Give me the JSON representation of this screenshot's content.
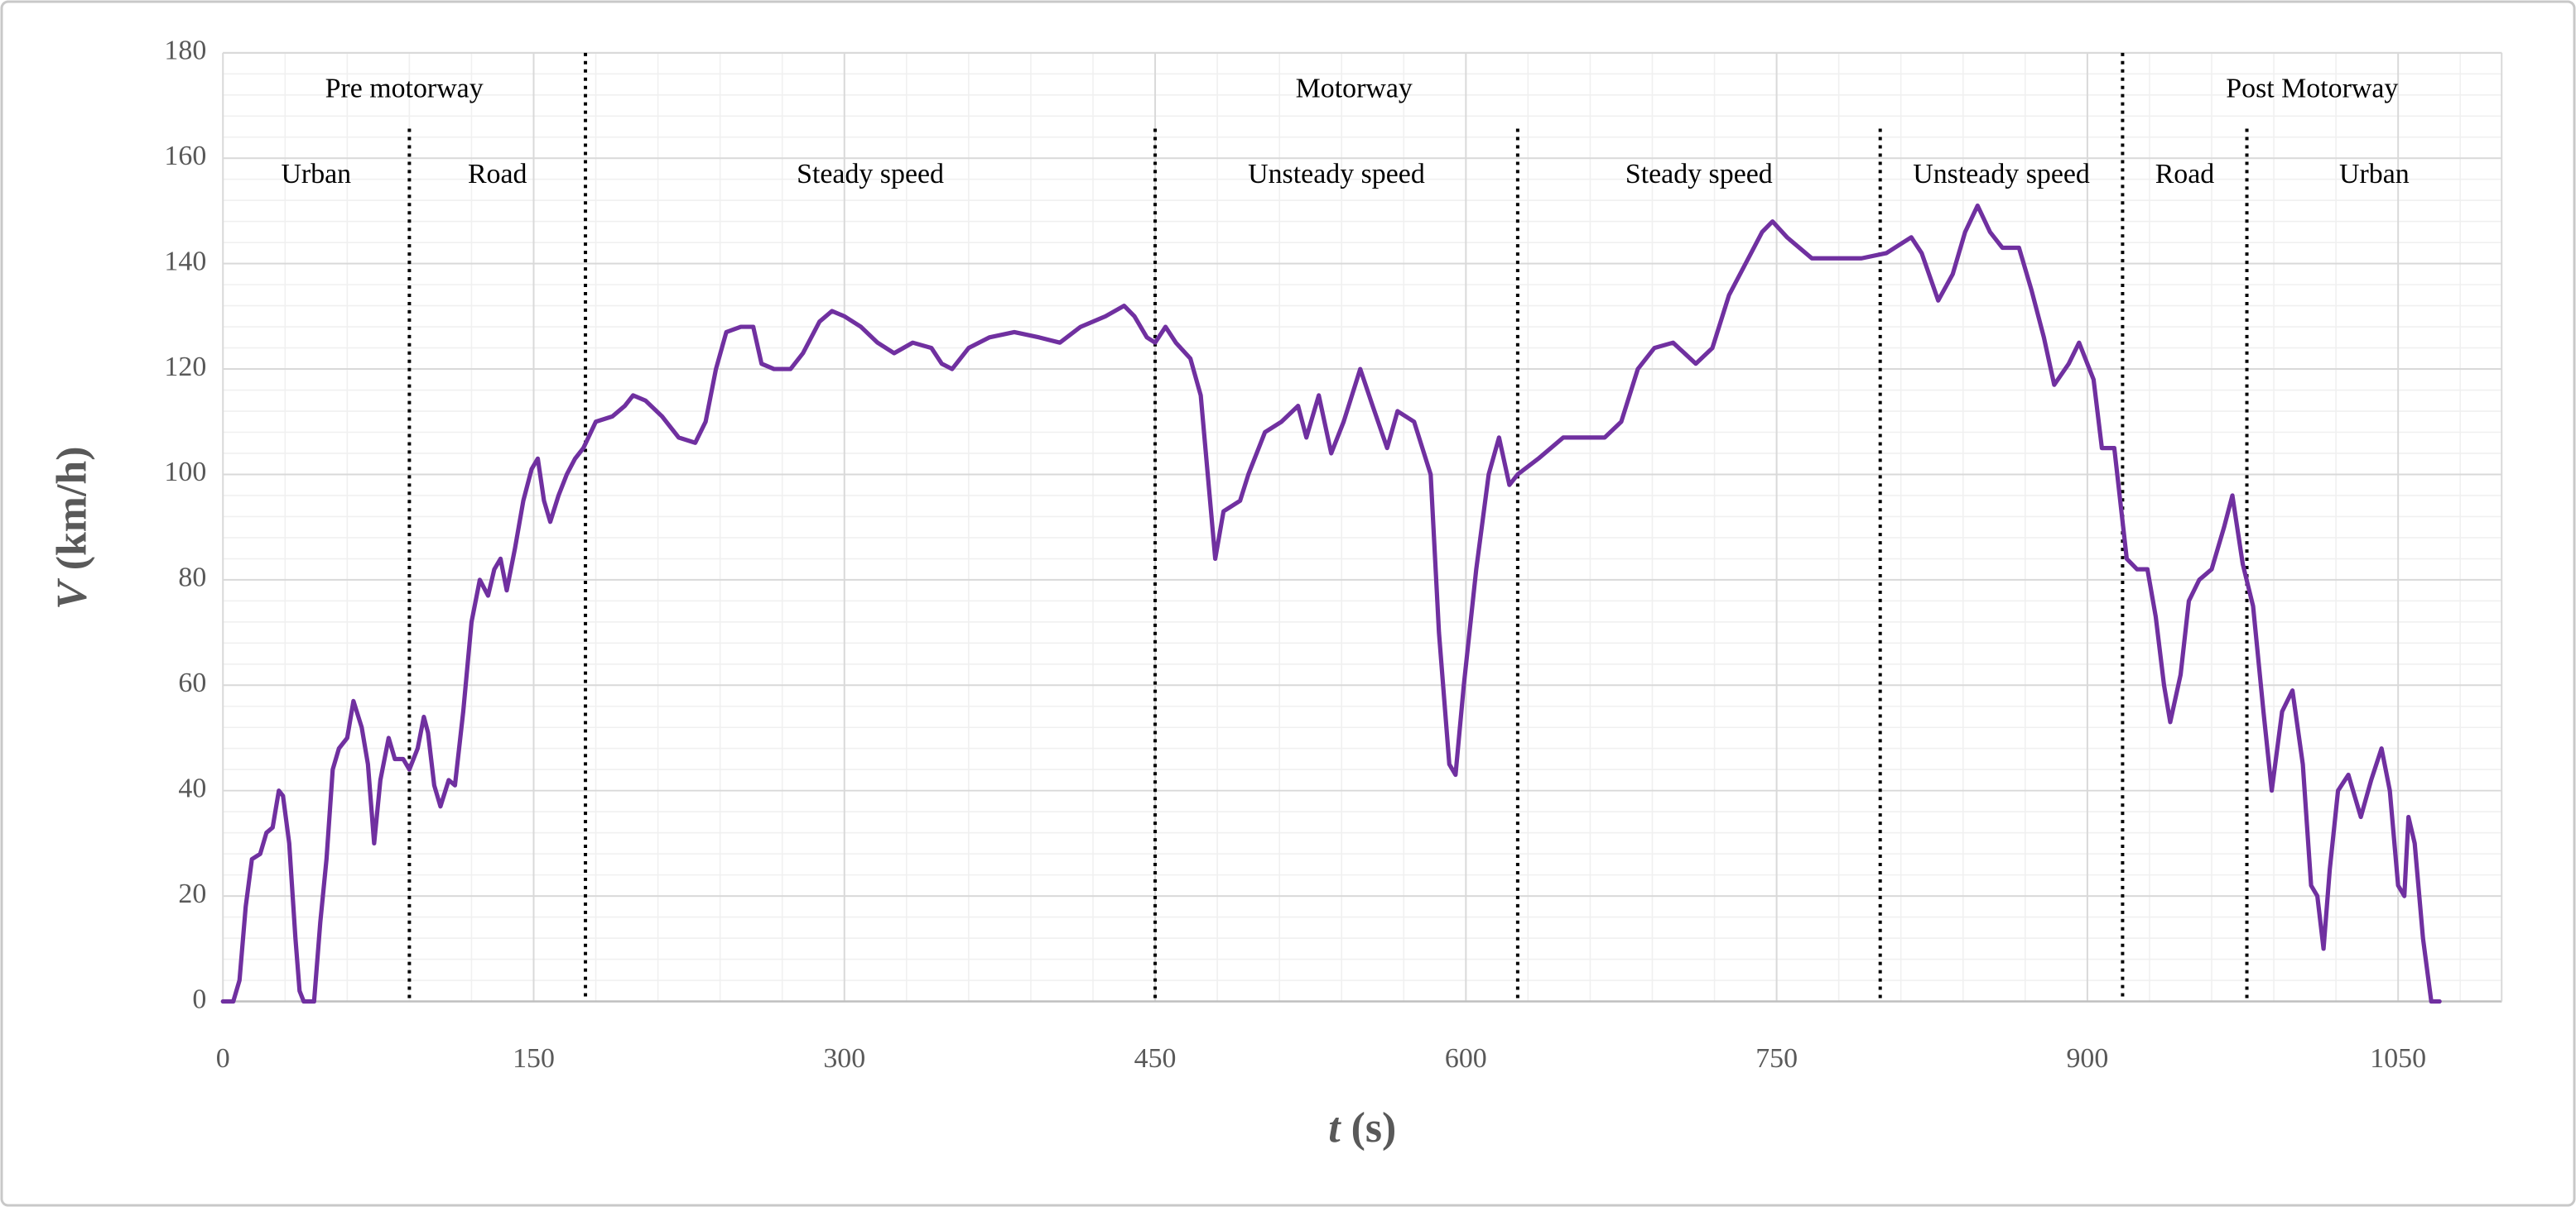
{
  "chart_data": {
    "type": "line",
    "ylabel": {
      "symbol": "V",
      "unit": "(km/h)"
    },
    "xlabel": {
      "symbol": "t",
      "unit": "(s)"
    },
    "xlim": [
      0,
      1100
    ],
    "ylim": [
      0,
      180
    ],
    "xticks": [
      0,
      150,
      300,
      450,
      600,
      750,
      900,
      1050
    ],
    "yticks": [
      0,
      20,
      40,
      60,
      80,
      100,
      120,
      140,
      160,
      180
    ],
    "grid": true,
    "minor_grid": true,
    "color": "#7030a0",
    "sections": [
      {
        "label": "Pre motorway",
        "start": 0,
        "end": 175
      },
      {
        "label": "Motorway",
        "start": 175,
        "end": 917
      },
      {
        "label": "Post Motorway",
        "start": 917,
        "end": 1100
      }
    ],
    "subsections": [
      {
        "label": "Urban",
        "start": 0,
        "end": 90
      },
      {
        "label": "Road",
        "start": 90,
        "end": 175
      },
      {
        "label": "Steady speed",
        "start": 175,
        "end": 450
      },
      {
        "label": "Unsteady speed",
        "start": 450,
        "end": 625
      },
      {
        "label": "Steady speed",
        "start": 625,
        "end": 800
      },
      {
        "label": "Unsteady speed",
        "start": 800,
        "end": 917
      },
      {
        "label": "Road",
        "start": 917,
        "end": 977
      },
      {
        "label": "Urban",
        "start": 977,
        "end": 1100
      }
    ],
    "x": [
      0,
      5,
      8,
      11,
      14,
      18,
      21,
      24,
      27,
      29,
      32,
      35,
      37,
      39,
      44,
      47,
      50,
      53,
      56,
      60,
      63,
      67,
      70,
      73,
      76,
      80,
      83,
      87,
      90,
      94,
      97,
      99,
      102,
      105,
      109,
      112,
      116,
      120,
      124,
      128,
      131,
      134,
      137,
      141,
      145,
      149,
      152,
      155,
      158,
      162,
      166,
      170,
      174,
      180,
      188,
      194,
      198,
      204,
      212,
      220,
      228,
      233,
      238,
      243,
      250,
      256,
      260,
      266,
      274,
      280,
      288,
      294,
      300,
      308,
      316,
      324,
      333,
      342,
      347,
      352,
      360,
      370,
      382,
      394,
      404,
      414,
      426,
      435,
      440,
      446,
      450,
      455,
      460,
      467,
      472,
      479,
      483,
      491,
      495,
      503,
      511,
      519,
      523,
      529,
      535,
      541,
      549,
      555,
      562,
      567,
      575,
      583,
      587,
      592,
      595,
      599,
      605,
      611,
      616,
      621,
      625,
      635,
      647,
      667,
      675,
      683,
      691,
      700,
      711,
      719,
      727,
      735,
      743,
      748,
      755,
      767,
      779,
      791,
      803,
      815,
      820,
      828,
      835,
      841,
      847,
      853,
      859,
      867,
      873,
      879,
      884,
      891,
      896,
      903,
      907,
      913,
      919,
      924,
      929,
      933,
      937,
      940,
      945,
      949,
      954,
      960,
      966,
      970,
      975,
      980,
      985,
      989,
      994,
      999,
      1004,
      1008,
      1011,
      1014,
      1017,
      1021,
      1026,
      1032,
      1037,
      1042,
      1046,
      1050,
      1053,
      1055,
      1058,
      1062,
      1066,
      1070
    ],
    "values": [
      0,
      0,
      4,
      18,
      27,
      28,
      32,
      33,
      40,
      39,
      30,
      12,
      2,
      0,
      0,
      15,
      27,
      44,
      48,
      50,
      57,
      52,
      45,
      30,
      42,
      50,
      46,
      46,
      44,
      48,
      54,
      51,
      41,
      37,
      42,
      41,
      55,
      72,
      80,
      77,
      82,
      84,
      78,
      86,
      95,
      101,
      103,
      95,
      91,
      96,
      100,
      103,
      105,
      110,
      111,
      113,
      115,
      114,
      111,
      107,
      106,
      110,
      120,
      127,
      128,
      128,
      121,
      120,
      120,
      123,
      129,
      131,
      130,
      128,
      125,
      123,
      125,
      124,
      121,
      120,
      124,
      126,
      127,
      126,
      125,
      128,
      130,
      132,
      130,
      126,
      125,
      128,
      125,
      122,
      115,
      84,
      93,
      95,
      100,
      108,
      110,
      113,
      107,
      115,
      104,
      110,
      120,
      113,
      105,
      112,
      110,
      100,
      70,
      45,
      43,
      60,
      82,
      100,
      107,
      98,
      100,
      103,
      107,
      107,
      110,
      120,
      124,
      125,
      121,
      124,
      134,
      140,
      146,
      148,
      145,
      141,
      141,
      141,
      142,
      145,
      142,
      133,
      138,
      146,
      151,
      146,
      143,
      143,
      135,
      126,
      117,
      121,
      125,
      118,
      105,
      105,
      84,
      82,
      82,
      73,
      60,
      53,
      62,
      76,
      80,
      82,
      90,
      96,
      83,
      75,
      55,
      40,
      55,
      59,
      45,
      22,
      20,
      10,
      25,
      40,
      43,
      35,
      42,
      48,
      40,
      22,
      20,
      35,
      30,
      12,
      0,
      0
    ]
  }
}
